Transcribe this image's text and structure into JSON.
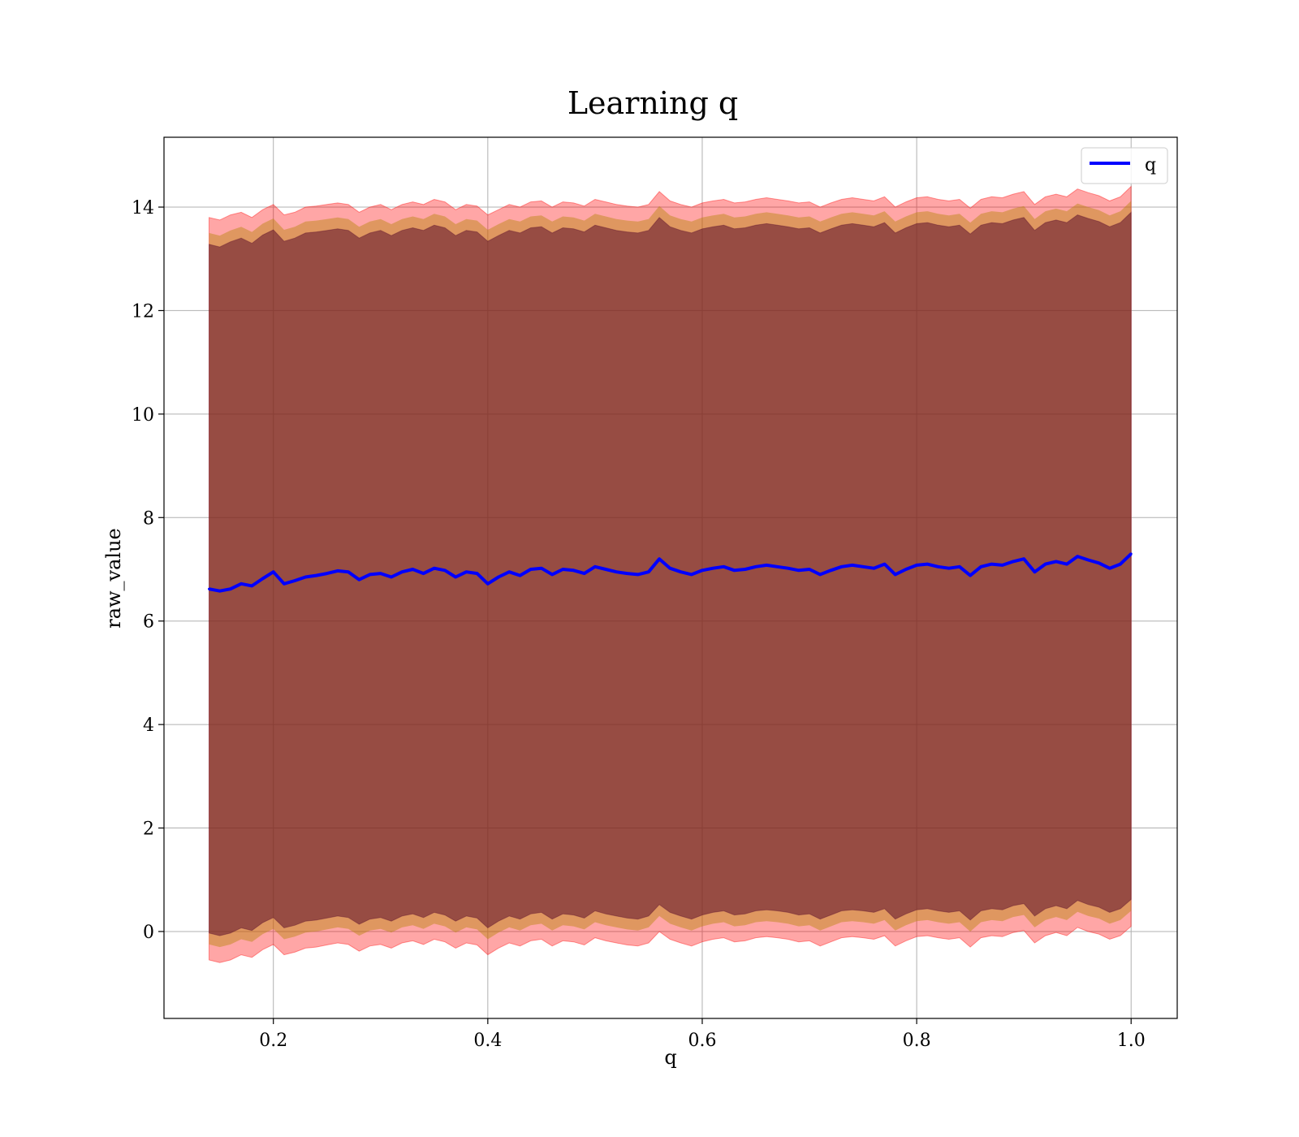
{
  "chart_data": {
    "type": "line",
    "title": "Learning q",
    "xlabel": "q",
    "ylabel": "raw_value",
    "xlim": [
      0.098,
      1.043
    ],
    "ylim": [
      -1.68,
      15.35
    ],
    "x_ticks": [
      0.2,
      0.4,
      0.6,
      0.8,
      1.0
    ],
    "x_tick_labels": [
      "0.2",
      "0.4",
      "0.6",
      "0.8",
      "1.0"
    ],
    "y_ticks": [
      0,
      2,
      4,
      6,
      8,
      10,
      12,
      14
    ],
    "y_tick_labels": [
      "0",
      "2",
      "4",
      "6",
      "8",
      "10",
      "12",
      "14"
    ],
    "grid": true,
    "legend": {
      "position": "top-right",
      "entries": [
        "q"
      ]
    },
    "colors": {
      "line": "#0000ff",
      "outer_band": "#ff0000",
      "inner_band": "#b8860b",
      "core_band": "#5b0f2c"
    },
    "series": [
      {
        "name": "q",
        "x": [
          0.14,
          0.15,
          0.16,
          0.17,
          0.18,
          0.19,
          0.2,
          0.21,
          0.22,
          0.23,
          0.24,
          0.25,
          0.26,
          0.27,
          0.28,
          0.29,
          0.3,
          0.31,
          0.32,
          0.33,
          0.34,
          0.35,
          0.36,
          0.37,
          0.38,
          0.39,
          0.4,
          0.41,
          0.42,
          0.43,
          0.44,
          0.45,
          0.46,
          0.47,
          0.48,
          0.49,
          0.5,
          0.51,
          0.52,
          0.53,
          0.54,
          0.55,
          0.56,
          0.57,
          0.58,
          0.59,
          0.6,
          0.61,
          0.62,
          0.63,
          0.64,
          0.65,
          0.66,
          0.67,
          0.68,
          0.69,
          0.7,
          0.71,
          0.72,
          0.73,
          0.74,
          0.75,
          0.76,
          0.77,
          0.78,
          0.79,
          0.8,
          0.81,
          0.82,
          0.83,
          0.84,
          0.85,
          0.86,
          0.87,
          0.88,
          0.89,
          0.9,
          0.91,
          0.92,
          0.93,
          0.94,
          0.95,
          0.96,
          0.97,
          0.98,
          0.99,
          1.0
        ],
        "y": [
          6.62,
          6.58,
          6.62,
          6.72,
          6.68,
          6.82,
          6.95,
          6.72,
          6.78,
          6.85,
          6.88,
          6.92,
          6.97,
          6.95,
          6.8,
          6.9,
          6.92,
          6.85,
          6.95,
          7.0,
          6.92,
          7.02,
          6.98,
          6.85,
          6.95,
          6.92,
          6.72,
          6.85,
          6.95,
          6.88,
          7.0,
          7.02,
          6.9,
          7.0,
          6.98,
          6.92,
          7.05,
          7.0,
          6.95,
          6.92,
          6.9,
          6.95,
          7.2,
          7.02,
          6.95,
          6.9,
          6.98,
          7.02,
          7.05,
          6.98,
          7.0,
          7.05,
          7.08,
          7.05,
          7.02,
          6.98,
          7.0,
          6.9,
          6.98,
          7.05,
          7.08,
          7.05,
          7.02,
          7.1,
          6.9,
          7.0,
          7.08,
          7.1,
          7.05,
          7.02,
          7.05,
          6.88,
          7.05,
          7.1,
          7.08,
          7.15,
          7.2,
          6.95,
          7.1,
          7.15,
          7.1,
          7.25,
          7.18,
          7.12,
          7.02,
          7.1,
          7.3
        ],
        "band_outer_upper": [
          13.8,
          13.75,
          13.85,
          13.9,
          13.8,
          13.95,
          14.05,
          13.85,
          13.9,
          14.0,
          14.02,
          14.05,
          14.08,
          14.05,
          13.9,
          14.0,
          14.05,
          13.95,
          14.05,
          14.1,
          14.05,
          14.15,
          14.1,
          13.95,
          14.05,
          14.02,
          13.85,
          13.95,
          14.05,
          14.0,
          14.1,
          14.12,
          14.0,
          14.1,
          14.08,
          14.02,
          14.15,
          14.1,
          14.05,
          14.02,
          14.0,
          14.05,
          14.3,
          14.12,
          14.05,
          14.0,
          14.08,
          14.12,
          14.15,
          14.08,
          14.1,
          14.15,
          14.18,
          14.15,
          14.12,
          14.08,
          14.1,
          14.0,
          14.08,
          14.15,
          14.18,
          14.15,
          14.12,
          14.2,
          14.0,
          14.1,
          14.18,
          14.2,
          14.15,
          14.12,
          14.15,
          13.98,
          14.15,
          14.2,
          14.18,
          14.25,
          14.3,
          14.05,
          14.2,
          14.25,
          14.2,
          14.35,
          14.28,
          14.22,
          14.12,
          14.2,
          14.4
        ],
        "band_outer_lower": [
          -0.55,
          -0.6,
          -0.55,
          -0.45,
          -0.5,
          -0.35,
          -0.25,
          -0.45,
          -0.4,
          -0.32,
          -0.3,
          -0.26,
          -0.22,
          -0.25,
          -0.38,
          -0.28,
          -0.25,
          -0.32,
          -0.22,
          -0.18,
          -0.25,
          -0.15,
          -0.2,
          -0.32,
          -0.22,
          -0.26,
          -0.45,
          -0.32,
          -0.22,
          -0.28,
          -0.18,
          -0.15,
          -0.28,
          -0.18,
          -0.2,
          -0.26,
          -0.12,
          -0.18,
          -0.22,
          -0.26,
          -0.28,
          -0.22,
          0.0,
          -0.15,
          -0.22,
          -0.28,
          -0.2,
          -0.15,
          -0.12,
          -0.2,
          -0.18,
          -0.12,
          -0.1,
          -0.12,
          -0.15,
          -0.2,
          -0.18,
          -0.28,
          -0.2,
          -0.12,
          -0.1,
          -0.12,
          -0.15,
          -0.08,
          -0.28,
          -0.18,
          -0.1,
          -0.08,
          -0.12,
          -0.15,
          -0.12,
          -0.3,
          -0.12,
          -0.08,
          -0.1,
          -0.02,
          0.02,
          -0.22,
          -0.08,
          -0.02,
          -0.08,
          0.08,
          0.0,
          -0.05,
          -0.15,
          -0.08,
          0.1
        ],
        "band_inner_upper": [
          13.5,
          13.45,
          13.55,
          13.62,
          13.52,
          13.68,
          13.78,
          13.56,
          13.62,
          13.72,
          13.74,
          13.77,
          13.8,
          13.77,
          13.62,
          13.72,
          13.77,
          13.67,
          13.77,
          13.82,
          13.77,
          13.87,
          13.82,
          13.67,
          13.77,
          13.74,
          13.56,
          13.67,
          13.77,
          13.72,
          13.82,
          13.84,
          13.72,
          13.82,
          13.8,
          13.74,
          13.87,
          13.82,
          13.77,
          13.74,
          13.72,
          13.77,
          14.02,
          13.84,
          13.77,
          13.72,
          13.8,
          13.84,
          13.87,
          13.8,
          13.82,
          13.87,
          13.9,
          13.87,
          13.84,
          13.8,
          13.82,
          13.72,
          13.8,
          13.87,
          13.9,
          13.87,
          13.84,
          13.92,
          13.72,
          13.82,
          13.9,
          13.92,
          13.87,
          13.84,
          13.87,
          13.7,
          13.87,
          13.92,
          13.9,
          13.97,
          14.02,
          13.77,
          13.92,
          13.97,
          13.92,
          14.07,
          14.0,
          13.94,
          13.84,
          13.92,
          14.12
        ],
        "band_inner_lower": [
          -0.25,
          -0.3,
          -0.25,
          -0.15,
          -0.2,
          -0.05,
          0.05,
          -0.15,
          -0.1,
          -0.02,
          0.0,
          0.04,
          0.08,
          0.05,
          -0.08,
          0.02,
          0.05,
          -0.02,
          0.08,
          0.12,
          0.05,
          0.15,
          0.1,
          -0.02,
          0.08,
          0.04,
          -0.15,
          -0.02,
          0.08,
          0.02,
          0.12,
          0.15,
          0.02,
          0.12,
          0.1,
          0.04,
          0.18,
          0.12,
          0.08,
          0.04,
          0.02,
          0.08,
          0.3,
          0.15,
          0.08,
          0.02,
          0.1,
          0.15,
          0.18,
          0.1,
          0.12,
          0.18,
          0.2,
          0.18,
          0.15,
          0.1,
          0.12,
          0.02,
          0.1,
          0.18,
          0.2,
          0.18,
          0.15,
          0.22,
          0.02,
          0.12,
          0.2,
          0.22,
          0.18,
          0.15,
          0.18,
          0.0,
          0.18,
          0.22,
          0.2,
          0.28,
          0.32,
          0.08,
          0.22,
          0.28,
          0.22,
          0.38,
          0.3,
          0.25,
          0.15,
          0.22,
          0.4
        ]
      }
    ]
  }
}
